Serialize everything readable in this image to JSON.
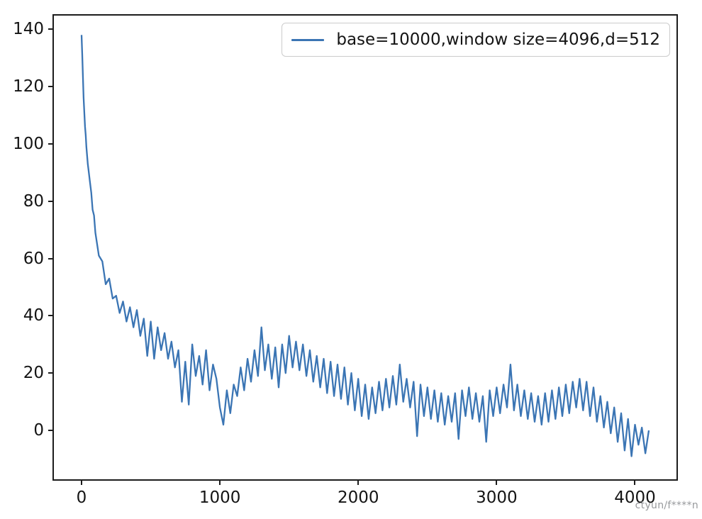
{
  "watermark": "ctyun/f****n",
  "chart_data": {
    "type": "line",
    "title": "",
    "xlabel": "",
    "ylabel": "",
    "grid": false,
    "xlim": [
      -205,
      4305
    ],
    "ylim": [
      -17.3,
      145.0
    ],
    "x_ticks": [
      0,
      1000,
      2000,
      3000,
      4000
    ],
    "y_ticks": [
      0,
      20,
      40,
      60,
      80,
      100,
      120,
      140
    ],
    "legend": {
      "position": "upper right",
      "entries": [
        {
          "label": "base=10000,window size=4096,d=512",
          "color": "#3b75b4"
        }
      ]
    },
    "series": [
      {
        "name": "base=10000,window size=4096,d=512",
        "color": "#3b75b4",
        "points": [
          [
            0,
            138
          ],
          [
            5,
            131
          ],
          [
            10,
            123
          ],
          [
            15,
            116
          ],
          [
            20,
            111
          ],
          [
            25,
            106
          ],
          [
            30,
            103
          ],
          [
            35,
            99
          ],
          [
            40,
            96
          ],
          [
            45,
            93
          ],
          [
            50,
            91
          ],
          [
            60,
            87
          ],
          [
            70,
            83
          ],
          [
            80,
            77
          ],
          [
            90,
            75
          ],
          [
            100,
            69
          ],
          [
            125,
            61
          ],
          [
            150,
            59
          ],
          [
            175,
            51
          ],
          [
            200,
            53
          ],
          [
            225,
            46
          ],
          [
            250,
            47
          ],
          [
            275,
            41
          ],
          [
            300,
            45
          ],
          [
            325,
            38
          ],
          [
            350,
            43
          ],
          [
            375,
            36
          ],
          [
            400,
            42
          ],
          [
            425,
            33
          ],
          [
            450,
            39
          ],
          [
            475,
            26
          ],
          [
            500,
            38
          ],
          [
            525,
            25
          ],
          [
            550,
            36
          ],
          [
            575,
            28
          ],
          [
            600,
            34
          ],
          [
            625,
            25
          ],
          [
            650,
            31
          ],
          [
            675,
            22
          ],
          [
            700,
            28
          ],
          [
            725,
            10
          ],
          [
            750,
            24
          ],
          [
            775,
            9
          ],
          [
            800,
            30
          ],
          [
            825,
            19
          ],
          [
            850,
            26
          ],
          [
            875,
            16
          ],
          [
            900,
            28
          ],
          [
            925,
            14
          ],
          [
            950,
            23
          ],
          [
            975,
            18
          ],
          [
            1000,
            8
          ],
          [
            1025,
            2
          ],
          [
            1050,
            14
          ],
          [
            1075,
            6
          ],
          [
            1100,
            16
          ],
          [
            1125,
            12
          ],
          [
            1150,
            22
          ],
          [
            1175,
            14
          ],
          [
            1200,
            25
          ],
          [
            1225,
            17
          ],
          [
            1250,
            28
          ],
          [
            1275,
            19
          ],
          [
            1300,
            36
          ],
          [
            1325,
            21
          ],
          [
            1350,
            30
          ],
          [
            1375,
            18
          ],
          [
            1400,
            29
          ],
          [
            1425,
            15
          ],
          [
            1450,
            30
          ],
          [
            1475,
            20
          ],
          [
            1500,
            33
          ],
          [
            1525,
            22
          ],
          [
            1550,
            31
          ],
          [
            1575,
            21
          ],
          [
            1600,
            30
          ],
          [
            1625,
            19
          ],
          [
            1650,
            28
          ],
          [
            1675,
            17
          ],
          [
            1700,
            26
          ],
          [
            1725,
            15
          ],
          [
            1750,
            25
          ],
          [
            1775,
            13
          ],
          [
            1800,
            24
          ],
          [
            1825,
            12
          ],
          [
            1850,
            23
          ],
          [
            1875,
            11
          ],
          [
            1900,
            22
          ],
          [
            1925,
            9
          ],
          [
            1950,
            20
          ],
          [
            1975,
            7
          ],
          [
            2000,
            18
          ],
          [
            2025,
            5
          ],
          [
            2050,
            16
          ],
          [
            2075,
            4
          ],
          [
            2100,
            15
          ],
          [
            2125,
            6
          ],
          [
            2150,
            17
          ],
          [
            2175,
            7
          ],
          [
            2200,
            18
          ],
          [
            2225,
            8
          ],
          [
            2250,
            19
          ],
          [
            2275,
            9
          ],
          [
            2300,
            23
          ],
          [
            2325,
            10
          ],
          [
            2350,
            18
          ],
          [
            2375,
            8
          ],
          [
            2400,
            17
          ],
          [
            2425,
            -2
          ],
          [
            2450,
            16
          ],
          [
            2475,
            5
          ],
          [
            2500,
            15
          ],
          [
            2525,
            4
          ],
          [
            2550,
            14
          ],
          [
            2575,
            3
          ],
          [
            2600,
            13
          ],
          [
            2625,
            2
          ],
          [
            2650,
            12
          ],
          [
            2675,
            3
          ],
          [
            2700,
            13
          ],
          [
            2725,
            -3
          ],
          [
            2750,
            14
          ],
          [
            2775,
            5
          ],
          [
            2800,
            15
          ],
          [
            2825,
            4
          ],
          [
            2850,
            13
          ],
          [
            2875,
            3
          ],
          [
            2900,
            12
          ],
          [
            2925,
            -4
          ],
          [
            2950,
            14
          ],
          [
            2975,
            5
          ],
          [
            3000,
            15
          ],
          [
            3025,
            6
          ],
          [
            3050,
            16
          ],
          [
            3075,
            8
          ],
          [
            3100,
            23
          ],
          [
            3125,
            7
          ],
          [
            3150,
            16
          ],
          [
            3175,
            5
          ],
          [
            3200,
            14
          ],
          [
            3225,
            4
          ],
          [
            3250,
            13
          ],
          [
            3275,
            3
          ],
          [
            3300,
            12
          ],
          [
            3325,
            2
          ],
          [
            3350,
            13
          ],
          [
            3375,
            3
          ],
          [
            3400,
            14
          ],
          [
            3425,
            4
          ],
          [
            3450,
            15
          ],
          [
            3475,
            5
          ],
          [
            3500,
            16
          ],
          [
            3525,
            6
          ],
          [
            3550,
            17
          ],
          [
            3575,
            8
          ],
          [
            3600,
            18
          ],
          [
            3625,
            7
          ],
          [
            3650,
            17
          ],
          [
            3675,
            5
          ],
          [
            3700,
            15
          ],
          [
            3725,
            3
          ],
          [
            3750,
            12
          ],
          [
            3775,
            1
          ],
          [
            3800,
            10
          ],
          [
            3825,
            -1
          ],
          [
            3850,
            8
          ],
          [
            3875,
            -4
          ],
          [
            3900,
            6
          ],
          [
            3925,
            -7
          ],
          [
            3950,
            4
          ],
          [
            3975,
            -9
          ],
          [
            4000,
            2
          ],
          [
            4025,
            -5
          ],
          [
            4050,
            1
          ],
          [
            4075,
            -8
          ],
          [
            4100,
            0
          ]
        ]
      }
    ]
  }
}
